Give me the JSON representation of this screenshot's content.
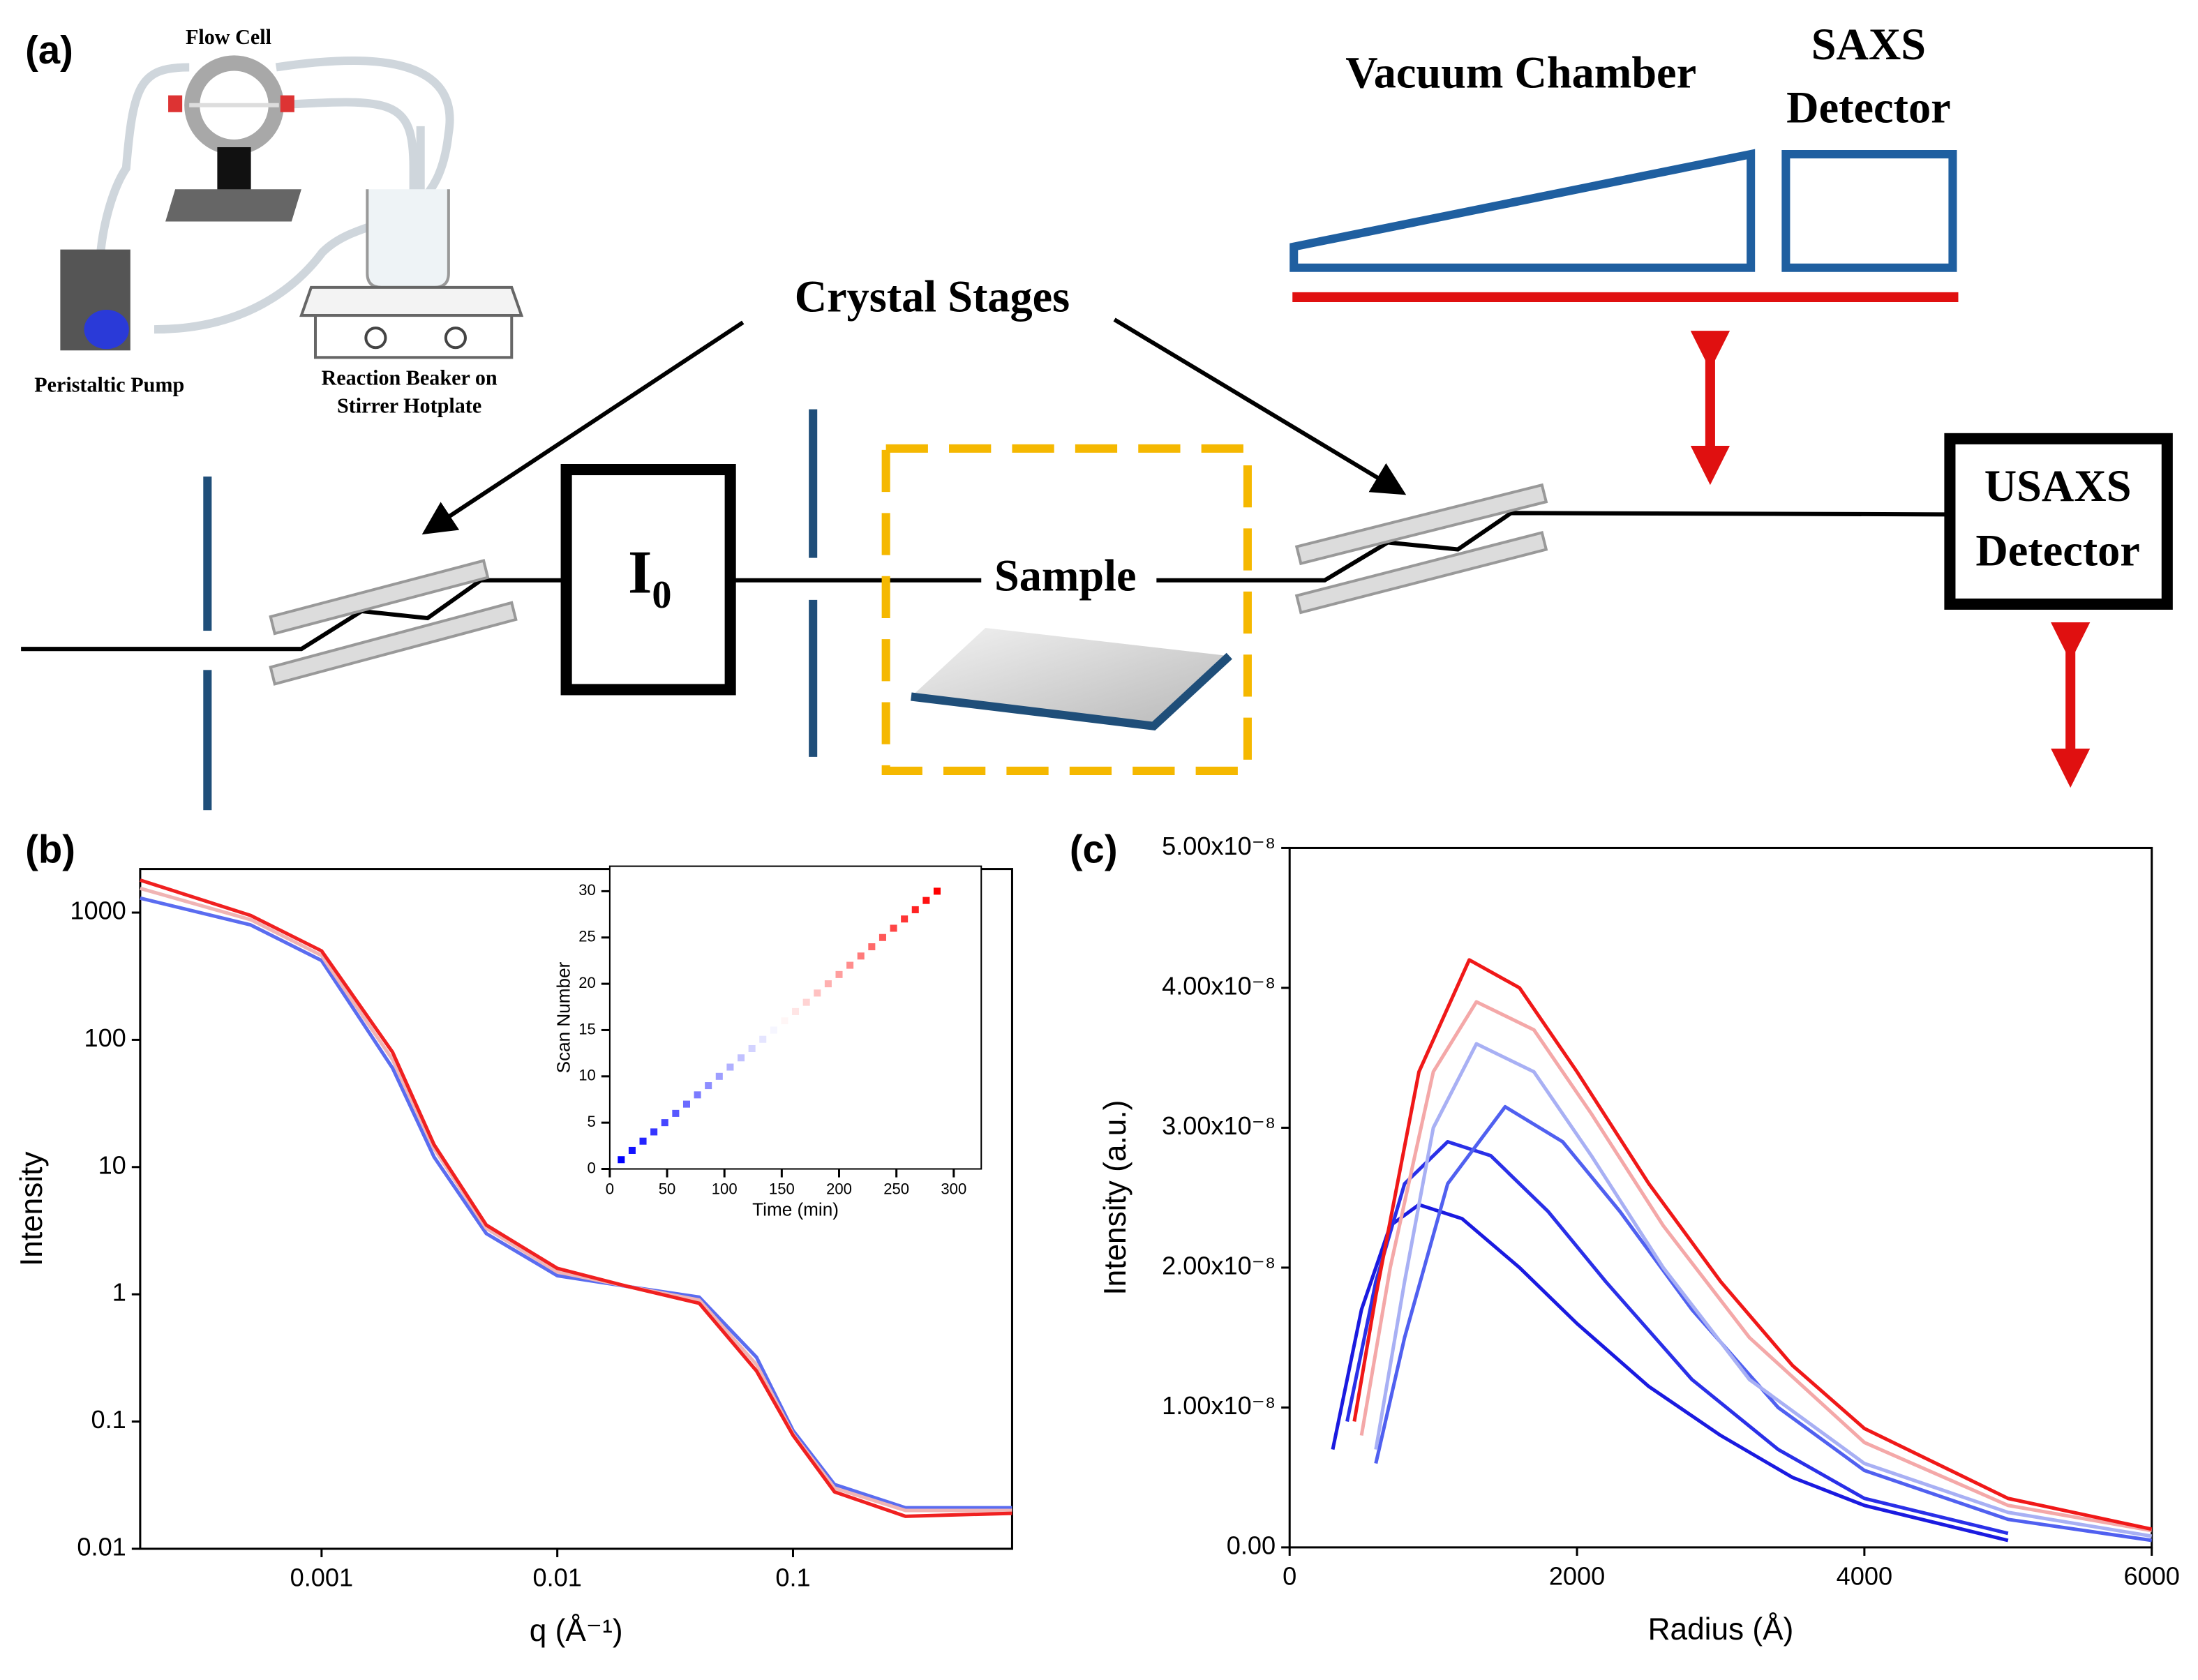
{
  "diagram": {
    "panel_label": "(a)",
    "flow_cell": "Flow Cell",
    "pump": "Peristaltic Pump",
    "beaker_line1": "Reaction Beaker on",
    "beaker_line2": "Stirrer Hotplate",
    "crystal_stages": "Crystal Stages",
    "vacuum_chamber": "Vacuum Chamber",
    "saxs_line1": "SAXS",
    "saxs_line2": "Detector",
    "i0": "I",
    "i0_sub": "0",
    "sample": "Sample",
    "usaxs_line1": "USAXS",
    "usaxs_line2": "Detector"
  },
  "chart_data": [
    {
      "type": "line",
      "label": "(b)",
      "xlabel": "q (Å⁻¹)",
      "ylabel": "Intensity",
      "xlog": true,
      "ylog": true,
      "xlim": [
        0.00017,
        0.85
      ],
      "ylim": [
        0.01,
        2200
      ],
      "xticks": [
        0.001,
        0.01,
        0.1
      ],
      "yticks": [
        0.01,
        0.1,
        1,
        10,
        100,
        1000
      ],
      "x": [
        0.00017,
        0.0005,
        0.001,
        0.002,
        0.003,
        0.005,
        0.01,
        0.02,
        0.04,
        0.07,
        0.1,
        0.15,
        0.3,
        0.85
      ],
      "series": [
        {
          "color": "#5a6cf0",
          "values": [
            1300,
            800,
            420,
            60,
            12,
            3,
            1.4,
            1.15,
            0.95,
            0.32,
            0.085,
            0.032,
            0.021,
            0.021
          ]
        },
        {
          "color": "#f0b4b4",
          "values": [
            1550,
            880,
            460,
            70,
            14,
            3.3,
            1.5,
            1.15,
            0.9,
            0.28,
            0.08,
            0.03,
            0.02,
            0.02
          ]
        },
        {
          "color": "#f02020",
          "values": [
            1800,
            950,
            500,
            80,
            15,
            3.5,
            1.6,
            1.15,
            0.85,
            0.25,
            0.078,
            0.028,
            0.018,
            0.019
          ]
        }
      ]
    },
    {
      "type": "scatter",
      "xlabel": "Time (min)",
      "ylabel": "Scan Number",
      "xlim": [
        0,
        324
      ],
      "ylim": [
        0,
        32.7
      ],
      "xticks": [
        0,
        50,
        100,
        150,
        200,
        250,
        300
      ],
      "yticks": [
        0,
        5,
        10,
        15,
        20,
        25,
        30
      ],
      "cmap": [
        "#0000ff",
        "#ffffff",
        "#ff0000"
      ],
      "x": [
        10,
        19.5,
        29,
        38.5,
        48,
        57.5,
        67,
        76.5,
        86,
        95.5,
        105,
        114.5,
        124,
        133.5,
        143,
        152.5,
        162,
        171.5,
        181,
        190.5,
        200,
        209.5,
        219,
        228.5,
        238,
        247.5,
        257,
        266.5,
        276,
        285.5
      ],
      "values": [
        1,
        2,
        3,
        4,
        5,
        6,
        7,
        8,
        9,
        10,
        11,
        12,
        13,
        14,
        15,
        16,
        17,
        18,
        19,
        20,
        21,
        22,
        23,
        24,
        25,
        26,
        27,
        28,
        29,
        30
      ]
    },
    {
      "type": "line",
      "label": "(c)",
      "xlabel": "Radius (Å)",
      "ylabel": "Intensity (a.u.)",
      "xlim": [
        0,
        6000
      ],
      "ylim": [
        0,
        5e-08
      ],
      "xticks": [
        0,
        2000,
        4000,
        6000
      ],
      "yticks": [
        {
          "value": 0,
          "label": "0.00"
        },
        {
          "value": 1e-08,
          "label": "1.00x10⁻⁸"
        },
        {
          "value": 2e-08,
          "label": "2.00x10⁻⁸"
        },
        {
          "value": 3e-08,
          "label": "3.00x10⁻⁸"
        },
        {
          "value": 4e-08,
          "label": "4.00x10⁻⁸"
        },
        {
          "value": 5e-08,
          "label": "5.00x10⁻⁸"
        }
      ],
      "series": [
        {
          "color": "#1a1ae0",
          "x": [
            300,
            500,
            700,
            900,
            1200,
            1600,
            2000,
            2500,
            3000,
            3500,
            4000,
            5000
          ],
          "values": [
            7e-09,
            1.7e-08,
            2.3e-08,
            2.45e-08,
            2.35e-08,
            2e-08,
            1.6e-08,
            1.15e-08,
            8e-09,
            5e-09,
            3e-09,
            5e-10
          ]
        },
        {
          "color": "#2a30e8",
          "x": [
            400,
            600,
            800,
            1100,
            1400,
            1800,
            2200,
            2800,
            3400,
            4000,
            5000
          ],
          "values": [
            9e-09,
            1.9e-08,
            2.6e-08,
            2.9e-08,
            2.8e-08,
            2.4e-08,
            1.9e-08,
            1.2e-08,
            7e-09,
            3.5e-09,
            1e-09
          ]
        },
        {
          "color": "#5060f0",
          "x": [
            600,
            800,
            1100,
            1500,
            1900,
            2300,
            2800,
            3400,
            4000,
            5000,
            6000
          ],
          "values": [
            6e-09,
            1.5e-08,
            2.6e-08,
            3.15e-08,
            2.9e-08,
            2.4e-08,
            1.7e-08,
            1e-08,
            5.5e-09,
            2e-09,
            5e-10
          ]
        },
        {
          "color": "#a8b0f4",
          "x": [
            600,
            800,
            1000,
            1300,
            1700,
            2100,
            2600,
            3200,
            4000,
            5000,
            6000
          ],
          "values": [
            7e-09,
            1.9e-08,
            3e-08,
            3.6e-08,
            3.4e-08,
            2.8e-08,
            2e-08,
            1.2e-08,
            6e-09,
            2.5e-09,
            8e-10
          ]
        },
        {
          "color": "#f4a8a8",
          "x": [
            500,
            700,
            1000,
            1300,
            1700,
            2100,
            2600,
            3200,
            4000,
            5000,
            6000
          ],
          "values": [
            8e-09,
            2e-08,
            3.4e-08,
            3.9e-08,
            3.7e-08,
            3.1e-08,
            2.3e-08,
            1.5e-08,
            7.5e-09,
            3e-09,
            1.2e-09
          ]
        },
        {
          "color": "#f01818",
          "x": [
            450,
            600,
            900,
            1250,
            1600,
            2000,
            2500,
            3000,
            3500,
            4000,
            5000,
            6000
          ],
          "values": [
            9e-09,
            1.8e-08,
            3.4e-08,
            4.2e-08,
            4e-08,
            3.4e-08,
            2.6e-08,
            1.9e-08,
            1.3e-08,
            8.5e-09,
            3.5e-09,
            1.3e-09
          ]
        }
      ]
    }
  ]
}
